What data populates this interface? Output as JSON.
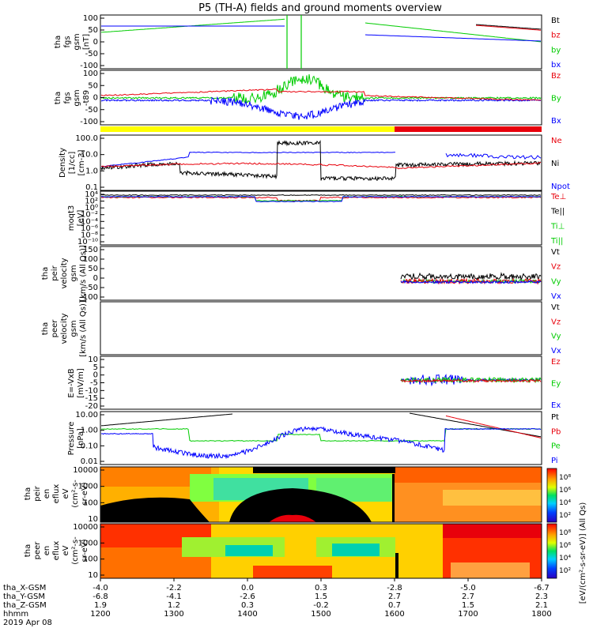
{
  "title": "P5 (TH-A) fields and ground moments overview",
  "colors": {
    "black": "#000000",
    "red": "#e8000b",
    "green": "#00cc00",
    "blue": "#0000ff",
    "yellow": "#ffff00"
  },
  "x_axis": {
    "rows": [
      {
        "label": "tha_X-GSM",
        "values": [
          "-4.0",
          "-2.2",
          "0.0",
          "0.3",
          "-2.8",
          "-5.0",
          "-6.7"
        ]
      },
      {
        "label": "tha_Y-GSM",
        "values": [
          "-6.8",
          "-4.1",
          "-2.6",
          "1.5",
          "2.7",
          "2.7",
          "2.3"
        ]
      },
      {
        "label": "tha_Z-GSM",
        "values": [
          "1.9",
          "1.2",
          "0.3",
          "-0.2",
          "0.7",
          "1.5",
          "2.1"
        ]
      },
      {
        "label": "hhmm",
        "values": [
          "1200",
          "1300",
          "1400",
          "1500",
          "1600",
          "1700",
          "1800"
        ]
      }
    ],
    "date": "2019 Apr 08"
  },
  "chart_data": [
    {
      "type": "line",
      "panel": "fgs_gsm",
      "ylabel": "tha fgs gsm [nT]",
      "ylim": [
        -100,
        100
      ],
      "yticks": [
        "100",
        "50",
        "0",
        "-50",
        "-100"
      ],
      "series": [
        {
          "name": "Bt",
          "color": "#000000"
        },
        {
          "name": "bz",
          "color": "#e8000b"
        },
        {
          "name": "by",
          "color": "#00cc00"
        },
        {
          "name": "bx",
          "color": "#0000ff"
        }
      ]
    },
    {
      "type": "line",
      "panel": "fgs_gsm_t89",
      "ylabel": "tha fgs gsm -t89 [nT]",
      "ylim": [
        -120,
        100
      ],
      "yticks": [
        "100",
        "50",
        "0",
        "-50",
        "-100"
      ],
      "series": [
        {
          "name": "Bz",
          "color": "#e8000b"
        },
        {
          "name": "By",
          "color": "#00cc00"
        },
        {
          "name": "Bx",
          "color": "#0000ff"
        }
      ]
    },
    {
      "type": "line",
      "panel": "density",
      "ylabel": "Density [1/cc] [cm-3]",
      "scale": "log",
      "ylim": [
        0.03,
        300
      ],
      "yticks": [
        "100.0",
        "10.0",
        "1.0",
        "0.1"
      ],
      "series": [
        {
          "name": "Ne",
          "color": "#e8000b"
        },
        {
          "name": "Ni",
          "color": "#000000"
        },
        {
          "name": "Npot",
          "color": "#0000ff"
        }
      ]
    },
    {
      "type": "line",
      "panel": "temperature",
      "ylabel": "moqt3 [eV]",
      "scale": "log",
      "yticks": [
        "10⁴",
        "10²",
        "10⁰",
        "10⁻²",
        "10⁻⁴",
        "10⁻⁶",
        "10⁻⁸",
        "10⁻¹⁰"
      ],
      "series": [
        {
          "name": "Te⊥",
          "color": "#e8000b"
        },
        {
          "name": "Te||",
          "color": "#000000"
        },
        {
          "name": "Ti⊥",
          "color": "#00cc00"
        },
        {
          "name": "Ti||",
          "color": "#00cc00"
        }
      ]
    },
    {
      "type": "line",
      "panel": "peir_velocity",
      "ylabel": "tha peir velocity gsm [km/s (All Qs)]",
      "ylim": [
        -100,
        150
      ],
      "yticks": [
        "150",
        "100",
        "50",
        "0",
        "-50",
        "-100"
      ],
      "series": [
        {
          "name": "Vt",
          "color": "#000000"
        },
        {
          "name": "Vz",
          "color": "#e8000b"
        },
        {
          "name": "Vy",
          "color": "#00cc00"
        },
        {
          "name": "Vx",
          "color": "#0000ff"
        }
      ]
    },
    {
      "type": "line",
      "panel": "peer_velocity",
      "ylabel": "tha peer velocity gsm [km/s (All Qs)]",
      "series": [
        {
          "name": "Vt",
          "color": "#000000"
        },
        {
          "name": "Vz",
          "color": "#e8000b"
        },
        {
          "name": "Vy",
          "color": "#00cc00"
        },
        {
          "name": "Vx",
          "color": "#0000ff"
        }
      ]
    },
    {
      "type": "line",
      "panel": "efield",
      "ylabel": "E=-VxB [mV/m]",
      "ylim": [
        -20,
        10
      ],
      "yticks": [
        "10",
        "5",
        "0",
        "-5",
        "-10",
        "-15",
        "-20"
      ],
      "series": [
        {
          "name": "Ez",
          "color": "#e8000b"
        },
        {
          "name": "Ey",
          "color": "#00cc00"
        },
        {
          "name": "Ex",
          "color": "#0000ff"
        }
      ]
    },
    {
      "type": "line",
      "panel": "pressure",
      "ylabel": "Pressure [nPa]",
      "scale": "log",
      "ylim": [
        0.003,
        12
      ],
      "yticks": [
        "10.00",
        "1.00",
        "0.10",
        "0.01"
      ],
      "series": [
        {
          "name": "Pt",
          "color": "#000000"
        },
        {
          "name": "Pb",
          "color": "#e8000b"
        },
        {
          "name": "Pe",
          "color": "#00cc00"
        },
        {
          "name": "Pi",
          "color": "#0000ff"
        }
      ]
    },
    {
      "type": "heatmap",
      "panel": "peir_eflux",
      "ylabel": "tha peir en eflux eV [eV/(cm²-s-sr-eV)]",
      "scale": "log",
      "yticks": [
        "10000",
        "1000",
        "100",
        "10"
      ]
    },
    {
      "type": "heatmap",
      "panel": "peer_eflux",
      "ylabel": "tha peer en eflux eV [eV/(cm²-s-sr-eV)]",
      "scale": "log",
      "yticks": [
        "10000",
        "1000",
        "100",
        "10"
      ]
    }
  ],
  "colorbar": {
    "label": "[eV/(cm²-s-sr-eV)] (All Qs)",
    "ticks": [
      "10⁸",
      "10⁶",
      "10⁴",
      "10²"
    ]
  }
}
